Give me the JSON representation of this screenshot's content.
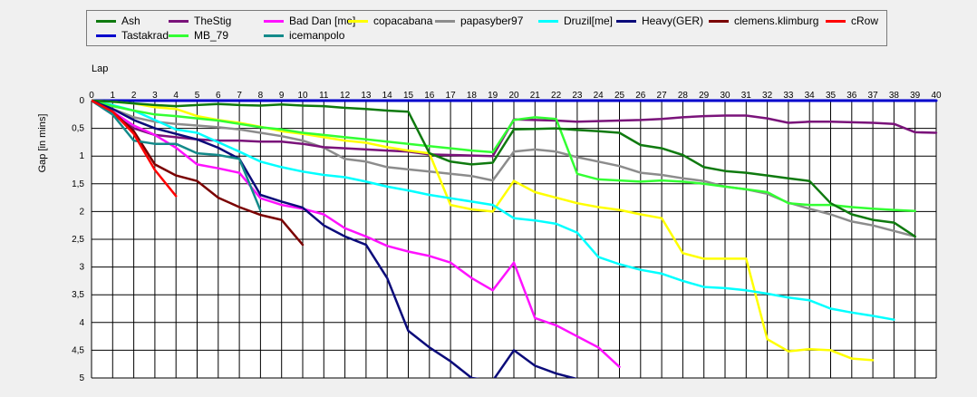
{
  "chart_data": {
    "type": "line",
    "xlabel": "Lap",
    "ylabel": "Gap [in mins]",
    "xlim": [
      0,
      40
    ],
    "ylim": [
      0,
      5
    ],
    "y_inverted": true,
    "grid": true,
    "legend_position": "top",
    "x_ticks": [
      "0",
      "1",
      "2",
      "3",
      "4",
      "5",
      "6",
      "7",
      "8",
      "9",
      "10",
      "11",
      "12",
      "13",
      "14",
      "15",
      "16",
      "17",
      "18",
      "19",
      "20",
      "21",
      "22",
      "23",
      "24",
      "25",
      "26",
      "27",
      "28",
      "29",
      "30",
      "31",
      "32",
      "33",
      "34",
      "35",
      "36",
      "37",
      "38",
      "39",
      "40"
    ],
    "y_ticks": [
      "0",
      "0,5",
      "1",
      "1,5",
      "2",
      "2,5",
      "3",
      "3,5",
      "4",
      "4,5",
      "5"
    ],
    "series": [
      {
        "name": "Ash",
        "color": "#0f7a0f",
        "x": [
          0,
          1,
          2,
          3,
          4,
          5,
          6,
          7,
          8,
          9,
          10,
          11,
          12,
          13,
          14,
          15,
          16,
          17,
          18,
          19,
          20,
          21,
          22,
          23,
          24,
          25,
          26,
          27,
          28,
          29,
          30,
          31,
          32,
          33,
          34,
          35,
          36,
          37,
          38,
          39
        ],
        "y": [
          0,
          0.02,
          0.05,
          0.08,
          0.1,
          0.08,
          0.06,
          0.08,
          0.09,
          0.07,
          0.09,
          0.1,
          0.13,
          0.15,
          0.18,
          0.2,
          0.95,
          1.1,
          1.15,
          1.12,
          0.52,
          0.51,
          0.5,
          0.53,
          0.55,
          0.58,
          0.8,
          0.86,
          0.98,
          1.2,
          1.27,
          1.3,
          1.35,
          1.4,
          1.45,
          1.85,
          2.05,
          2.15,
          2.2,
          2.45
        ]
      },
      {
        "name": "TheStig",
        "color": "#7a137a",
        "x": [
          0,
          1,
          2,
          3,
          4,
          5,
          6,
          7,
          8,
          9,
          10,
          11,
          12,
          13,
          14,
          15,
          16,
          17,
          18,
          19,
          20,
          21,
          22,
          23,
          24,
          25,
          26,
          27,
          28,
          29,
          30,
          31,
          32,
          33,
          34,
          35,
          36,
          37,
          38,
          39,
          40
        ],
        "y": [
          0,
          0.25,
          0.5,
          0.62,
          0.66,
          0.7,
          0.72,
          0.72,
          0.74,
          0.74,
          0.78,
          0.84,
          0.86,
          0.88,
          0.9,
          0.92,
          0.97,
          0.98,
          0.99,
          1.0,
          0.34,
          0.35,
          0.36,
          0.38,
          0.37,
          0.36,
          0.35,
          0.33,
          0.3,
          0.28,
          0.27,
          0.27,
          0.32,
          0.4,
          0.38,
          0.38,
          0.39,
          0.4,
          0.42,
          0.57,
          0.58
        ]
      },
      {
        "name": "Bad Dan [me]",
        "color": "#ff12ff",
        "x": [
          0,
          1,
          2,
          3,
          4,
          5,
          6,
          7,
          8,
          9,
          10,
          11,
          12,
          13,
          14,
          15,
          16,
          17,
          18,
          19,
          20,
          21,
          22,
          23,
          24,
          25
        ],
        "y": [
          0,
          0.2,
          0.45,
          0.62,
          0.85,
          1.15,
          1.22,
          1.3,
          1.76,
          1.88,
          1.95,
          2.05,
          2.3,
          2.45,
          2.62,
          2.72,
          2.8,
          2.92,
          3.2,
          3.42,
          2.92,
          3.92,
          4.05,
          4.25,
          4.45,
          4.8
        ]
      },
      {
        "name": "copacabana",
        "color": "#ffff00",
        "x": [
          0,
          1,
          2,
          3,
          4,
          5,
          6,
          7,
          8,
          9,
          10,
          11,
          12,
          13,
          14,
          15,
          16,
          17,
          18,
          19,
          20,
          21,
          22,
          23,
          24,
          25,
          26,
          27,
          28,
          29,
          30,
          31,
          32,
          33,
          34,
          35,
          36,
          37
        ],
        "y": [
          0,
          0.02,
          0.05,
          0.12,
          0.15,
          0.28,
          0.35,
          0.4,
          0.47,
          0.55,
          0.6,
          0.66,
          0.72,
          0.76,
          0.84,
          0.9,
          0.95,
          1.88,
          1.96,
          2.0,
          1.45,
          1.65,
          1.75,
          1.85,
          1.92,
          1.97,
          2.05,
          2.12,
          2.75,
          2.85,
          2.85,
          2.85,
          4.3,
          4.52,
          4.48,
          4.5,
          4.65,
          4.68
        ]
      },
      {
        "name": "papasyber97",
        "color": "#8c8c8c",
        "x": [
          0,
          1,
          2,
          3,
          4,
          5,
          6,
          7,
          8,
          9,
          10,
          11,
          12,
          13,
          14,
          15,
          16,
          17,
          18,
          19,
          20,
          21,
          22,
          23,
          24,
          25,
          26,
          27,
          28,
          29,
          30,
          31,
          32,
          33,
          34,
          35,
          36,
          37,
          38,
          39
        ],
        "y": [
          0,
          0.15,
          0.3,
          0.38,
          0.42,
          0.45,
          0.48,
          0.52,
          0.58,
          0.64,
          0.72,
          0.85,
          1.05,
          1.1,
          1.2,
          1.24,
          1.28,
          1.32,
          1.36,
          1.44,
          0.92,
          0.88,
          0.92,
          1.02,
          1.1,
          1.18,
          1.3,
          1.34,
          1.4,
          1.45,
          1.55,
          1.6,
          1.68,
          1.84,
          1.95,
          2.05,
          2.18,
          2.25,
          2.35,
          2.45
        ]
      },
      {
        "name": "Druzil[me]",
        "color": "#00ffff",
        "x": [
          0,
          1,
          2,
          3,
          4,
          5,
          6,
          7,
          8,
          9,
          10,
          11,
          12,
          13,
          14,
          15,
          16,
          17,
          18,
          19,
          20,
          21,
          22,
          23,
          24,
          25,
          26,
          27,
          28,
          29,
          30,
          31,
          32,
          33,
          34,
          35,
          36,
          37,
          38
        ],
        "y": [
          0,
          0.08,
          0.18,
          0.35,
          0.52,
          0.58,
          0.75,
          0.92,
          1.1,
          1.2,
          1.28,
          1.34,
          1.38,
          1.46,
          1.55,
          1.62,
          1.7,
          1.76,
          1.82,
          1.88,
          2.12,
          2.16,
          2.22,
          2.38,
          2.82,
          2.95,
          3.05,
          3.12,
          3.25,
          3.36,
          3.38,
          3.42,
          3.48,
          3.55,
          3.6,
          3.75,
          3.82,
          3.88,
          3.95
        ]
      },
      {
        "name": "Heavy(GER)",
        "color": "#0b0b7a",
        "x": [
          0,
          1,
          2,
          3,
          4,
          5,
          6,
          7,
          8,
          9,
          10,
          11,
          12,
          13,
          14,
          15,
          16,
          17,
          18,
          19,
          20,
          21,
          22,
          23
        ],
        "y": [
          0,
          0.15,
          0.35,
          0.5,
          0.6,
          0.7,
          0.85,
          1.05,
          1.7,
          1.82,
          1.93,
          2.25,
          2.45,
          2.6,
          3.2,
          4.15,
          4.45,
          4.7,
          5.0,
          5.05,
          4.5,
          4.78,
          4.92,
          5.02
        ]
      },
      {
        "name": "clemens.klimburg",
        "color": "#7a0000",
        "x": [
          0,
          1,
          2,
          3,
          4,
          5,
          6,
          7,
          8,
          9,
          10
        ],
        "y": [
          0,
          0.2,
          0.55,
          1.15,
          1.35,
          1.45,
          1.75,
          1.92,
          2.06,
          2.15,
          2.6
        ]
      },
      {
        "name": "cRow",
        "color": "#ff0000",
        "x": [
          0,
          1,
          2,
          3,
          4
        ],
        "y": [
          0,
          0.2,
          0.6,
          1.25,
          1.72
        ]
      },
      {
        "name": "Tastakrad",
        "color": "#0000cc",
        "x": [
          0,
          1,
          2,
          3,
          4,
          5,
          6,
          7,
          8,
          9,
          10,
          11,
          12,
          13,
          14,
          15,
          16,
          17,
          18,
          19,
          20,
          21,
          22,
          23,
          24,
          25,
          26,
          27,
          28,
          29,
          30,
          31,
          32,
          33,
          34,
          35,
          36,
          37,
          38,
          39,
          40
        ],
        "y": [
          0,
          0,
          0,
          0,
          0,
          0,
          0,
          0,
          0,
          0,
          0,
          0,
          0,
          0,
          0,
          0,
          0,
          0,
          0,
          0,
          0,
          0,
          0,
          0,
          0,
          0,
          0,
          0,
          0,
          0,
          0,
          0,
          0,
          0,
          0,
          0,
          0,
          0,
          0,
          0,
          0
        ]
      },
      {
        "name": "MB_79",
        "color": "#33ff33",
        "x": [
          0,
          1,
          2,
          3,
          4,
          5,
          6,
          7,
          8,
          9,
          10,
          11,
          12,
          13,
          14,
          15,
          16,
          17,
          18,
          19,
          20,
          21,
          22,
          23,
          24,
          25,
          26,
          27,
          28,
          29,
          30,
          31,
          32,
          33,
          34,
          35,
          36,
          37,
          38,
          39
        ],
        "y": [
          0,
          0.1,
          0.18,
          0.25,
          0.28,
          0.32,
          0.36,
          0.42,
          0.48,
          0.52,
          0.58,
          0.62,
          0.66,
          0.7,
          0.74,
          0.78,
          0.82,
          0.86,
          0.9,
          0.93,
          0.35,
          0.3,
          0.33,
          1.32,
          1.42,
          1.44,
          1.46,
          1.44,
          1.46,
          1.5,
          1.55,
          1.6,
          1.65,
          1.85,
          1.88,
          1.88,
          1.92,
          1.95,
          1.97,
          1.99
        ]
      },
      {
        "name": "icemanpolo",
        "color": "#138a8a",
        "x": [
          0,
          1,
          2,
          3,
          4,
          5,
          6,
          7,
          8
        ],
        "y": [
          0,
          0.25,
          0.72,
          0.78,
          0.78,
          0.95,
          0.98,
          1.05,
          1.98
        ]
      }
    ]
  }
}
